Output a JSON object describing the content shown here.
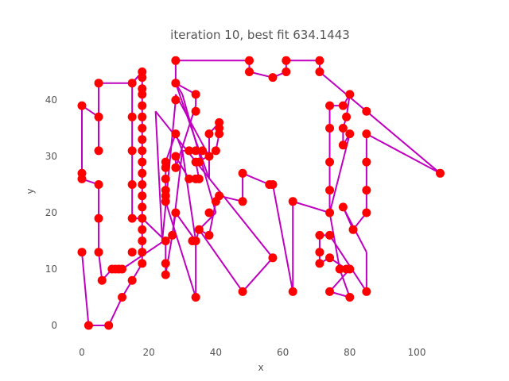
{
  "chart_data": {
    "type": "line",
    "title": "iteration 10, best fit 634.1443",
    "xlabel": "x",
    "ylabel": "y",
    "xlim": [
      -5,
      110
    ],
    "ylim": [
      -3,
      49
    ],
    "xticks": [
      0,
      20,
      40,
      60,
      80,
      100
    ],
    "yticks": [
      0,
      10,
      20,
      30,
      40
    ],
    "grid": false,
    "line_color": "#bf00bf",
    "marker_color": "#ff0000",
    "path": [
      [
        0,
        13
      ],
      [
        2,
        0
      ],
      [
        8,
        0
      ],
      [
        12,
        5
      ],
      [
        15,
        8
      ],
      [
        18,
        11
      ],
      [
        18,
        13
      ],
      [
        18,
        15
      ],
      [
        18,
        17
      ],
      [
        18,
        19
      ],
      [
        18,
        21
      ],
      [
        18,
        23
      ],
      [
        18,
        25
      ],
      [
        18,
        27
      ],
      [
        18,
        29
      ],
      [
        18,
        31
      ],
      [
        18,
        33
      ],
      [
        18,
        35
      ],
      [
        18,
        37
      ],
      [
        18,
        39
      ],
      [
        18,
        41
      ],
      [
        18,
        42
      ],
      [
        18,
        44
      ],
      [
        18,
        45
      ],
      [
        15,
        43
      ],
      [
        15,
        37
      ],
      [
        15,
        31
      ],
      [
        15,
        25
      ],
      [
        15,
        19
      ],
      [
        18,
        19
      ],
      [
        25,
        15
      ],
      [
        25,
        11
      ],
      [
        25,
        9
      ],
      [
        27,
        16
      ],
      [
        28,
        20
      ],
      [
        34,
        15
      ],
      [
        34,
        5
      ],
      [
        25,
        22
      ],
      [
        25,
        24
      ],
      [
        25,
        26
      ],
      [
        25,
        28
      ],
      [
        25,
        29
      ],
      [
        28,
        34
      ],
      [
        30,
        31
      ],
      [
        32,
        31
      ],
      [
        34,
        31
      ],
      [
        36,
        31
      ],
      [
        38,
        30
      ],
      [
        34,
        29
      ],
      [
        35,
        26
      ],
      [
        32,
        26
      ],
      [
        28,
        30
      ],
      [
        28,
        28
      ],
      [
        34,
        39
      ],
      [
        34,
        41
      ],
      [
        28,
        43
      ],
      [
        28,
        47
      ],
      [
        50,
        47
      ],
      [
        50,
        45
      ],
      [
        57,
        44
      ],
      [
        61,
        45
      ],
      [
        61,
        47
      ],
      [
        71,
        47
      ],
      [
        71,
        45
      ],
      [
        85,
        38
      ],
      [
        107,
        27
      ],
      [
        85,
        34
      ],
      [
        85,
        29
      ],
      [
        85,
        24
      ],
      [
        85,
        20
      ],
      [
        81,
        17
      ],
      [
        78,
        21
      ],
      [
        85,
        13
      ],
      [
        85,
        6
      ],
      [
        74,
        16
      ],
      [
        71,
        16
      ],
      [
        71,
        13
      ],
      [
        71,
        11
      ],
      [
        74,
        12
      ],
      [
        79,
        10
      ],
      [
        80,
        10
      ],
      [
        74,
        6
      ],
      [
        80,
        5
      ],
      [
        77,
        10
      ],
      [
        74,
        20
      ],
      [
        74,
        24
      ],
      [
        74,
        29
      ],
      [
        74,
        35
      ],
      [
        74,
        39
      ],
      [
        78,
        39
      ],
      [
        80,
        41
      ],
      [
        79,
        37
      ],
      [
        78,
        35
      ],
      [
        78,
        32
      ],
      [
        80,
        34
      ],
      [
        74,
        20
      ],
      [
        63,
        22
      ],
      [
        63,
        6
      ],
      [
        57,
        25
      ],
      [
        56,
        25
      ],
      [
        48,
        27
      ],
      [
        48,
        22
      ],
      [
        41,
        23
      ],
      [
        40,
        22
      ],
      [
        38,
        16
      ],
      [
        35,
        17
      ],
      [
        40,
        20
      ],
      [
        30,
        41
      ],
      [
        28,
        43
      ],
      [
        38,
        26
      ],
      [
        38,
        34
      ],
      [
        41,
        36
      ],
      [
        41,
        35
      ],
      [
        41,
        34
      ],
      [
        40,
        31
      ],
      [
        38,
        30
      ],
      [
        28,
        41
      ],
      [
        28,
        40
      ],
      [
        24,
        15
      ],
      [
        22,
        38
      ],
      [
        57,
        12
      ],
      [
        48,
        6
      ],
      [
        35,
        17
      ],
      [
        34,
        15
      ],
      [
        30,
        31
      ],
      [
        27,
        16
      ],
      [
        12,
        10
      ],
      [
        11,
        10
      ],
      [
        10,
        10
      ],
      [
        9,
        10
      ],
      [
        6,
        8
      ],
      [
        5,
        13
      ],
      [
        5,
        19
      ],
      [
        5,
        25
      ],
      [
        0,
        26
      ],
      [
        0,
        27
      ],
      [
        0,
        39
      ],
      [
        5,
        37
      ],
      [
        5,
        31
      ],
      [
        5,
        43
      ],
      [
        15,
        43
      ],
      [
        18,
        45
      ]
    ],
    "points": [
      [
        0,
        13
      ],
      [
        2,
        0
      ],
      [
        8,
        0
      ],
      [
        12,
        5
      ],
      [
        15,
        8
      ],
      [
        18,
        11
      ],
      [
        18,
        13
      ],
      [
        18,
        15
      ],
      [
        18,
        17
      ],
      [
        18,
        19
      ],
      [
        18,
        21
      ],
      [
        18,
        23
      ],
      [
        18,
        25
      ],
      [
        18,
        27
      ],
      [
        18,
        29
      ],
      [
        18,
        31
      ],
      [
        18,
        33
      ],
      [
        18,
        35
      ],
      [
        18,
        37
      ],
      [
        18,
        39
      ],
      [
        18,
        41
      ],
      [
        18,
        42
      ],
      [
        18,
        44
      ],
      [
        18,
        45
      ],
      [
        15,
        43
      ],
      [
        15,
        37
      ],
      [
        15,
        31
      ],
      [
        15,
        25
      ],
      [
        15,
        19
      ],
      [
        15,
        13
      ],
      [
        0,
        26
      ],
      [
        0,
        27
      ],
      [
        0,
        39
      ],
      [
        5,
        43
      ],
      [
        5,
        37
      ],
      [
        5,
        31
      ],
      [
        5,
        25
      ],
      [
        5,
        19
      ],
      [
        5,
        13
      ],
      [
        6,
        8
      ],
      [
        9,
        10
      ],
      [
        10,
        10
      ],
      [
        11,
        10
      ],
      [
        12,
        10
      ],
      [
        25,
        9
      ],
      [
        25,
        11
      ],
      [
        25,
        15
      ],
      [
        25,
        22
      ],
      [
        25,
        23
      ],
      [
        25,
        24
      ],
      [
        25,
        26
      ],
      [
        25,
        28
      ],
      [
        25,
        29
      ],
      [
        27,
        16
      ],
      [
        28,
        20
      ],
      [
        28,
        28
      ],
      [
        28,
        30
      ],
      [
        28,
        34
      ],
      [
        28,
        40
      ],
      [
        28,
        43
      ],
      [
        28,
        47
      ],
      [
        32,
        26
      ],
      [
        32,
        31
      ],
      [
        33,
        15
      ],
      [
        34,
        15
      ],
      [
        34,
        5
      ],
      [
        34,
        26
      ],
      [
        34,
        29
      ],
      [
        34,
        31
      ],
      [
        35,
        17
      ],
      [
        35,
        26
      ],
      [
        35,
        29
      ],
      [
        36,
        31
      ],
      [
        34,
        38
      ],
      [
        34,
        41
      ],
      [
        38,
        16
      ],
      [
        38,
        20
      ],
      [
        38,
        30
      ],
      [
        38,
        34
      ],
      [
        40,
        22
      ],
      [
        41,
        23
      ],
      [
        40,
        31
      ],
      [
        41,
        34
      ],
      [
        41,
        35
      ],
      [
        41,
        36
      ],
      [
        48,
        6
      ],
      [
        48,
        22
      ],
      [
        48,
        27
      ],
      [
        50,
        45
      ],
      [
        50,
        47
      ],
      [
        56,
        25
      ],
      [
        57,
        25
      ],
      [
        57,
        12
      ],
      [
        57,
        44
      ],
      [
        61,
        45
      ],
      [
        61,
        47
      ],
      [
        63,
        6
      ],
      [
        63,
        22
      ],
      [
        71,
        11
      ],
      [
        71,
        13
      ],
      [
        71,
        16
      ],
      [
        71,
        45
      ],
      [
        71,
        47
      ],
      [
        74,
        6
      ],
      [
        74,
        12
      ],
      [
        74,
        16
      ],
      [
        74,
        20
      ],
      [
        74,
        24
      ],
      [
        74,
        29
      ],
      [
        74,
        35
      ],
      [
        74,
        39
      ],
      [
        77,
        10
      ],
      [
        78,
        21
      ],
      [
        78,
        32
      ],
      [
        78,
        35
      ],
      [
        78,
        39
      ],
      [
        79,
        10
      ],
      [
        79,
        37
      ],
      [
        80,
        5
      ],
      [
        80,
        10
      ],
      [
        80,
        34
      ],
      [
        80,
        41
      ],
      [
        81,
        17
      ],
      [
        85,
        6
      ],
      [
        85,
        20
      ],
      [
        85,
        24
      ],
      [
        85,
        29
      ],
      [
        85,
        34
      ],
      [
        85,
        38
      ],
      [
        107,
        27
      ]
    ]
  }
}
